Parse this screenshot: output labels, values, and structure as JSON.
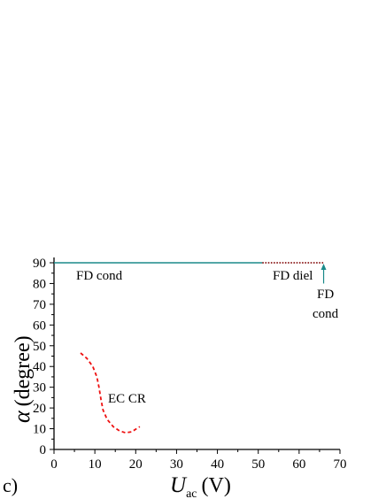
{
  "panel_label": "c)",
  "chart_data": {
    "type": "line",
    "xlabel": {
      "symbol": "U",
      "subscript": "ac",
      "unit": "(V)"
    },
    "ylabel": {
      "symbol": "α",
      "unit": "(degree)"
    },
    "xlim": [
      0,
      70
    ],
    "ylim": [
      0,
      90
    ],
    "x_ticks": [
      0,
      10,
      20,
      30,
      40,
      50,
      60,
      70
    ],
    "y_ticks": [
      0,
      10,
      20,
      30,
      40,
      50,
      60,
      70,
      80,
      90
    ],
    "grid": false,
    "colors": {
      "teal": "#1a8a8a",
      "darkred": "#8b1a1a",
      "red": "#ee1111"
    },
    "series": [
      {
        "style": "solid",
        "color": "#1a8a8a",
        "x": [
          0,
          51
        ],
        "y": [
          90,
          90
        ]
      },
      {
        "style": "dotted",
        "color": "#8b1a1a",
        "x": [
          51,
          66
        ],
        "y": [
          90,
          90
        ]
      },
      {
        "style": "dashed",
        "color": "#ee1111",
        "x": [
          6.5,
          8,
          9.5,
          10.5,
          11,
          11.5,
          12,
          13,
          14.5,
          16,
          17.5,
          19,
          21
        ],
        "y": [
          46.5,
          44,
          40,
          35,
          30,
          24,
          19,
          14.5,
          11,
          9,
          8,
          8.5,
          11
        ]
      }
    ],
    "annotations": [
      {
        "text": "FD cond",
        "color": "#1a8a8a"
      },
      {
        "text": "FD diel",
        "color": "#8b1a1a"
      },
      {
        "text": "FD",
        "color": "#1a8a8a"
      },
      {
        "text": "cond",
        "color": "#1a8a8a"
      },
      {
        "text": "EC CR",
        "color": "#ee1111"
      }
    ],
    "arrow": {
      "x": 66,
      "y_from": 80,
      "y_to": 90,
      "color": "#1a8a8a"
    }
  }
}
